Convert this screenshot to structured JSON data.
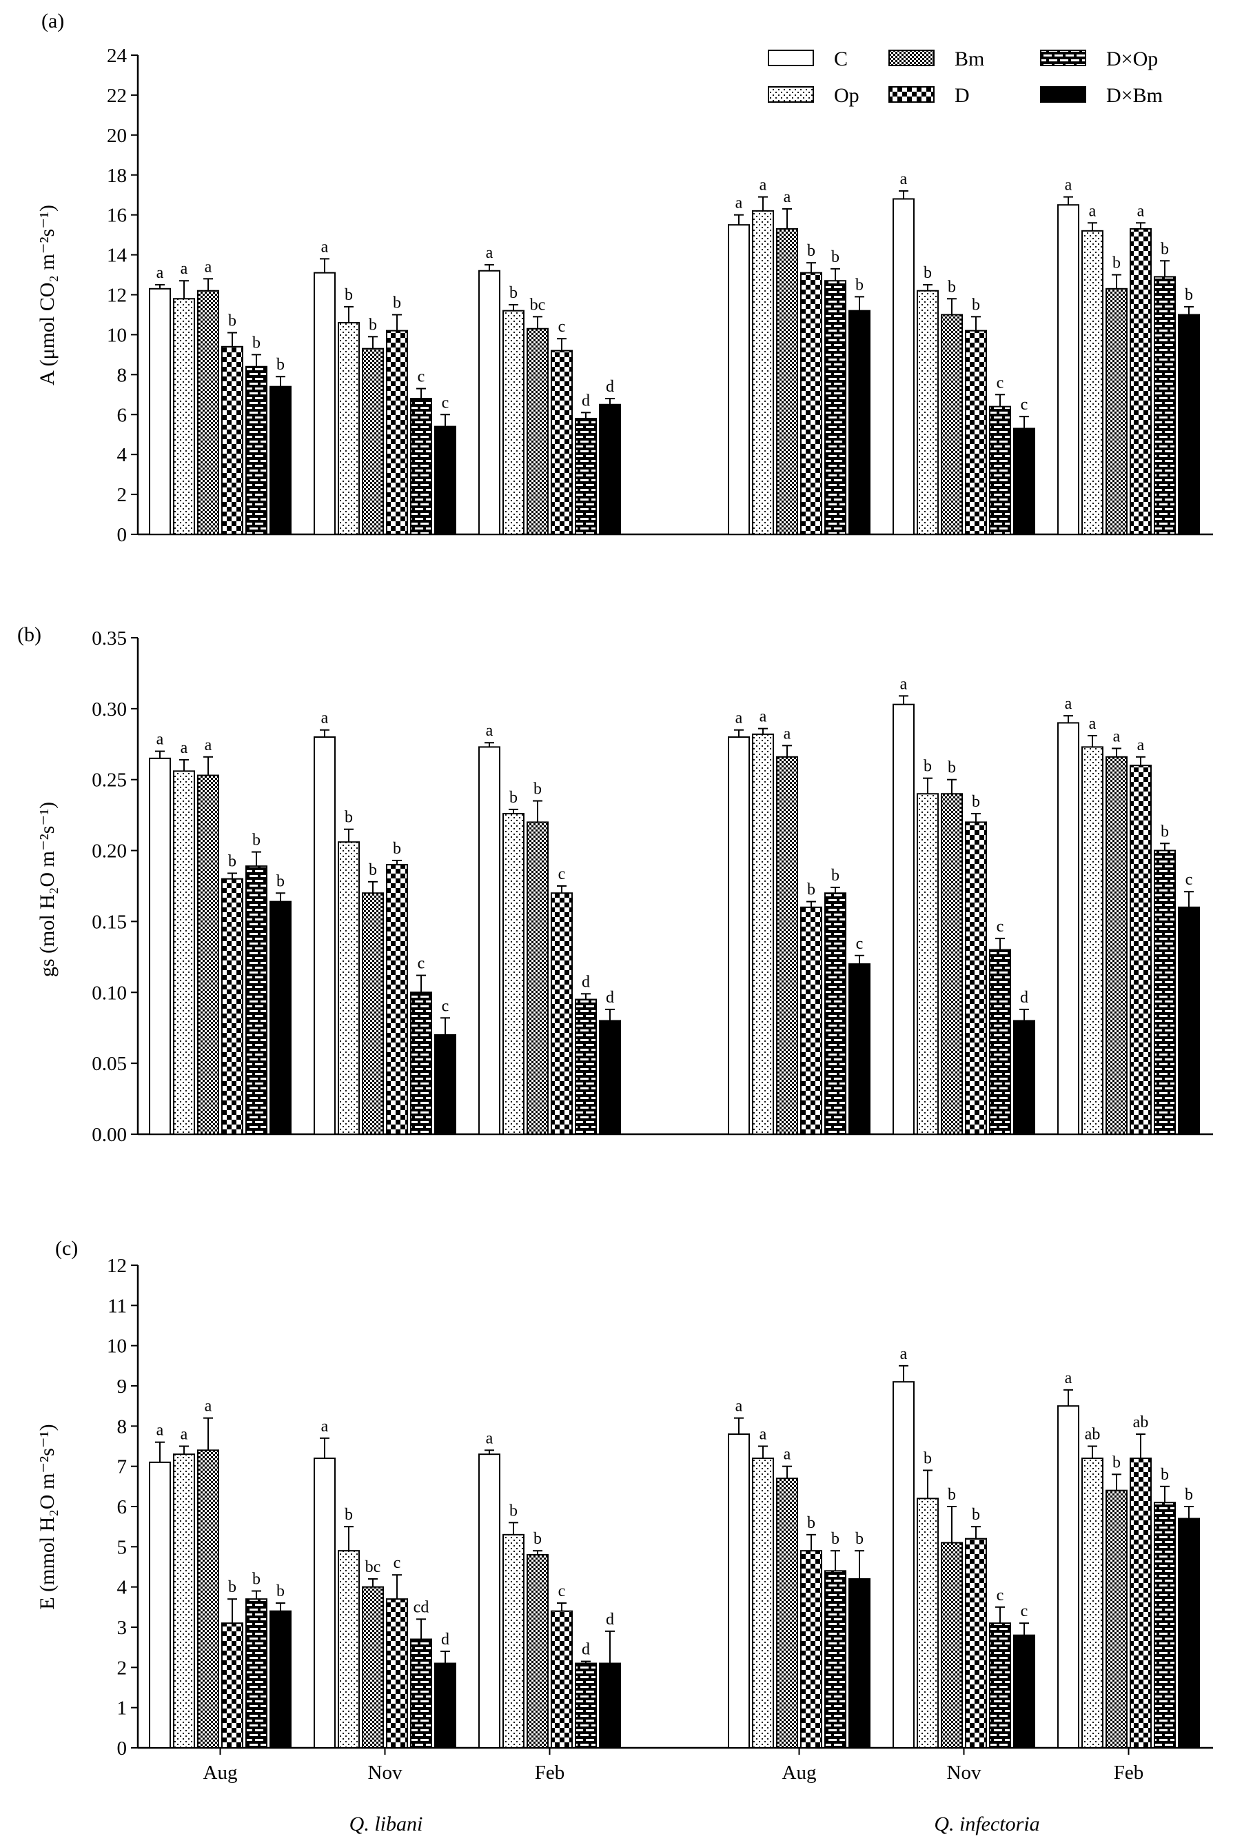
{
  "patterns": {
    "C": "white",
    "Op": "dots",
    "Bm": "checker",
    "D": "bigchecker",
    "DxOp": "brick",
    "DxBm": "solid"
  },
  "colors": {
    "ink": "#000000",
    "background": "#ffffff"
  },
  "legend": {
    "entries": [
      {
        "key": "C",
        "label": "C"
      },
      {
        "key": "Op",
        "label": "Op"
      },
      {
        "key": "Bm",
        "label": "Bm"
      },
      {
        "key": "D",
        "label": "D"
      },
      {
        "key": "DxOp",
        "label": "D×Op"
      },
      {
        "key": "DxBm",
        "label": "D×Bm"
      }
    ]
  },
  "x_axis": {
    "months": [
      "Aug",
      "Nov",
      "Feb",
      "Aug",
      "Nov",
      "Feb"
    ],
    "species": [
      "Q. libani",
      "Q. infectoria"
    ]
  },
  "chart_data": [
    {
      "panel_label": "(a)",
      "type": "bar",
      "ylabel": "A (μmol CO₂ m⁻²s⁻¹)",
      "ylim": [
        0,
        24
      ],
      "yticks": [
        "0",
        "2",
        "4",
        "6",
        "8",
        "10",
        "12",
        "14",
        "16",
        "18",
        "20",
        "22",
        "24"
      ],
      "groups": [
        {
          "species": "Q. libani",
          "month": "Aug",
          "values": [
            12.3,
            11.8,
            12.2,
            9.4,
            8.4,
            7.4
          ],
          "errors": [
            0.2,
            0.9,
            0.6,
            0.7,
            0.6,
            0.5
          ],
          "letters": [
            "a",
            "a",
            "a",
            "b",
            "b",
            "b"
          ]
        },
        {
          "species": "Q. libani",
          "month": "Nov",
          "values": [
            13.1,
            10.6,
            9.3,
            10.2,
            6.8,
            5.4
          ],
          "errors": [
            0.7,
            0.8,
            0.6,
            0.8,
            0.5,
            0.6
          ],
          "letters": [
            "a",
            "b",
            "b",
            "b",
            "c",
            "c"
          ]
        },
        {
          "species": "Q. libani",
          "month": "Feb",
          "values": [
            13.2,
            11.2,
            10.3,
            9.2,
            5.8,
            6.5
          ],
          "errors": [
            0.3,
            0.3,
            0.6,
            0.6,
            0.3,
            0.3
          ],
          "letters": [
            "a",
            "b",
            "bc",
            "c",
            "d",
            "d"
          ]
        },
        {
          "species": "Q. infectoria",
          "month": "Aug",
          "values": [
            15.5,
            16.2,
            15.3,
            13.1,
            12.7,
            11.2
          ],
          "errors": [
            0.5,
            0.7,
            1.0,
            0.5,
            0.6,
            0.7
          ],
          "letters": [
            "a",
            "a",
            "a",
            "b",
            "b",
            "b"
          ]
        },
        {
          "species": "Q. infectoria",
          "month": "Nov",
          "values": [
            16.8,
            12.2,
            11.0,
            10.2,
            6.4,
            5.3
          ],
          "errors": [
            0.4,
            0.3,
            0.8,
            0.7,
            0.6,
            0.6
          ],
          "letters": [
            "a",
            "b",
            "b",
            "b",
            "c",
            "c"
          ]
        },
        {
          "species": "Q. infectoria",
          "month": "Feb",
          "values": [
            16.5,
            15.2,
            12.3,
            15.3,
            12.9,
            11.0
          ],
          "errors": [
            0.4,
            0.4,
            0.7,
            0.3,
            0.8,
            0.4
          ],
          "letters": [
            "a",
            "a",
            "b",
            "a",
            "b",
            "b"
          ]
        }
      ]
    },
    {
      "panel_label": "(b)",
      "type": "bar",
      "ylabel": "gs (mol H₂O m⁻²s⁻¹)",
      "ylim": [
        0,
        0.35
      ],
      "yticks": [
        "0.00",
        "0.05",
        "0.10",
        "0.15",
        "0.20",
        "0.25",
        "0.30",
        "0.35"
      ],
      "groups": [
        {
          "species": "Q. libani",
          "month": "Aug",
          "values": [
            0.265,
            0.256,
            0.253,
            0.18,
            0.189,
            0.164
          ],
          "errors": [
            0.005,
            0.008,
            0.013,
            0.004,
            0.01,
            0.006
          ],
          "letters": [
            "a",
            "a",
            "a",
            "b",
            "b",
            "b"
          ]
        },
        {
          "species": "Q. libani",
          "month": "Nov",
          "values": [
            0.28,
            0.206,
            0.17,
            0.19,
            0.1,
            0.07
          ],
          "errors": [
            0.005,
            0.009,
            0.008,
            0.003,
            0.012,
            0.012
          ],
          "letters": [
            "a",
            "b",
            "b",
            "b",
            "c",
            "c"
          ]
        },
        {
          "species": "Q. libani",
          "month": "Feb",
          "values": [
            0.273,
            0.226,
            0.22,
            0.17,
            0.095,
            0.08
          ],
          "errors": [
            0.003,
            0.003,
            0.015,
            0.005,
            0.004,
            0.008
          ],
          "letters": [
            "a",
            "b",
            "b",
            "c",
            "d",
            "d"
          ]
        },
        {
          "species": "Q. infectoria",
          "month": "Aug",
          "values": [
            0.28,
            0.282,
            0.266,
            0.16,
            0.17,
            0.12
          ],
          "errors": [
            0.005,
            0.004,
            0.008,
            0.004,
            0.004,
            0.006
          ],
          "letters": [
            "a",
            "a",
            "a",
            "b",
            "b",
            "c"
          ]
        },
        {
          "species": "Q. infectoria",
          "month": "Nov",
          "values": [
            0.303,
            0.24,
            0.24,
            0.22,
            0.13,
            0.08
          ],
          "errors": [
            0.006,
            0.011,
            0.01,
            0.006,
            0.008,
            0.008
          ],
          "letters": [
            "a",
            "b",
            "b",
            "b",
            "c",
            "d"
          ]
        },
        {
          "species": "Q. infectoria",
          "month": "Feb",
          "values": [
            0.29,
            0.273,
            0.266,
            0.26,
            0.2,
            0.16
          ],
          "errors": [
            0.005,
            0.008,
            0.006,
            0.006,
            0.005,
            0.011
          ],
          "letters": [
            "a",
            "a",
            "a",
            "a",
            "b",
            "c"
          ]
        }
      ]
    },
    {
      "panel_label": "(c)",
      "type": "bar",
      "ylabel": "E (mmol H₂O m⁻²s⁻¹)",
      "ylim": [
        0,
        12
      ],
      "yticks": [
        "0",
        "1",
        "2",
        "3",
        "4",
        "5",
        "6",
        "7",
        "8",
        "9",
        "10",
        "11",
        "12"
      ],
      "groups": [
        {
          "species": "Q. libani",
          "month": "Aug",
          "values": [
            7.1,
            7.3,
            7.4,
            3.1,
            3.7,
            3.4
          ],
          "errors": [
            0.5,
            0.2,
            0.8,
            0.6,
            0.2,
            0.2
          ],
          "letters": [
            "a",
            "a",
            "a",
            "b",
            "b",
            "b"
          ]
        },
        {
          "species": "Q. libani",
          "month": "Nov",
          "values": [
            7.2,
            4.9,
            4.0,
            3.7,
            2.7,
            2.1
          ],
          "errors": [
            0.5,
            0.6,
            0.2,
            0.6,
            0.5,
            0.3
          ],
          "letters": [
            "a",
            "b",
            "bc",
            "c",
            "cd",
            "d"
          ]
        },
        {
          "species": "Q. libani",
          "month": "Feb",
          "values": [
            7.3,
            5.3,
            4.8,
            3.4,
            2.1,
            2.1
          ],
          "errors": [
            0.1,
            0.3,
            0.1,
            0.2,
            0.05,
            0.8
          ],
          "letters": [
            "a",
            "b",
            "b",
            "c",
            "d",
            "d"
          ]
        },
        {
          "species": "Q. infectoria",
          "month": "Aug",
          "values": [
            7.8,
            7.2,
            6.7,
            4.9,
            4.4,
            4.2
          ],
          "errors": [
            0.4,
            0.3,
            0.3,
            0.4,
            0.5,
            0.7
          ],
          "letters": [
            "a",
            "a",
            "a",
            "b",
            "b",
            "b"
          ]
        },
        {
          "species": "Q. infectoria",
          "month": "Nov",
          "values": [
            9.1,
            6.2,
            5.1,
            5.2,
            3.1,
            2.8
          ],
          "errors": [
            0.4,
            0.7,
            0.9,
            0.3,
            0.4,
            0.3
          ],
          "letters": [
            "a",
            "b",
            "b",
            "b",
            "c",
            "c"
          ]
        },
        {
          "species": "Q. infectoria",
          "month": "Feb",
          "values": [
            8.5,
            7.2,
            6.4,
            7.2,
            6.1,
            5.7
          ],
          "errors": [
            0.4,
            0.3,
            0.4,
            0.6,
            0.4,
            0.3
          ],
          "letters": [
            "a",
            "ab",
            "b",
            "ab",
            "b",
            "b"
          ]
        }
      ]
    }
  ]
}
